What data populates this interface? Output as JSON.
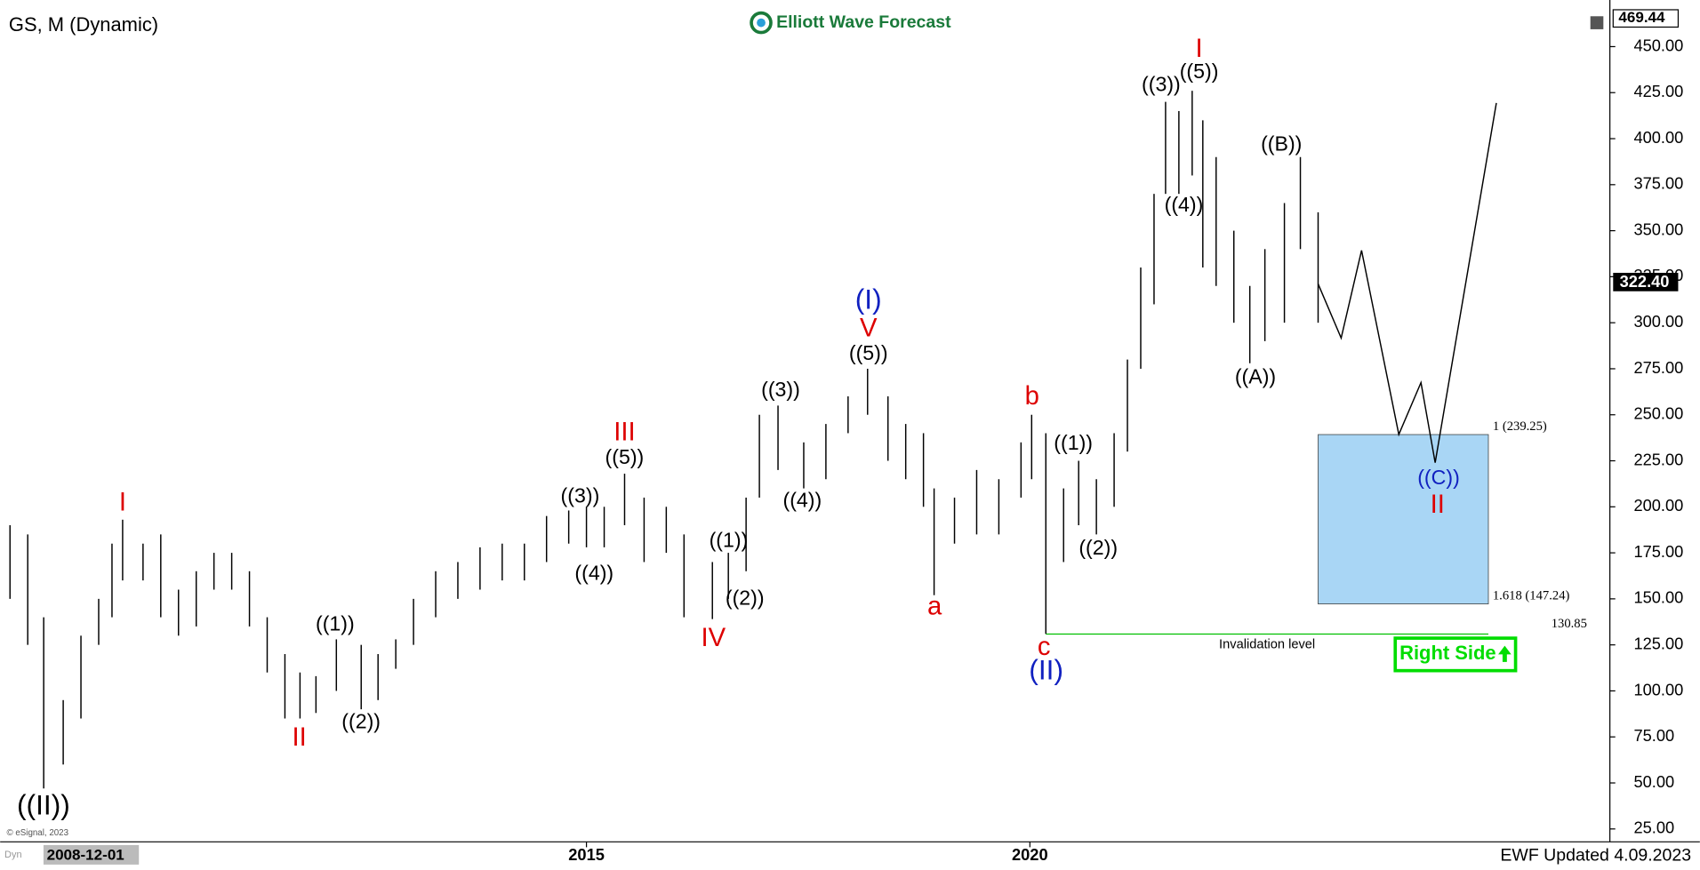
{
  "chart_data": {
    "type": "ohlc",
    "title": "GS, M (Dynamic)",
    "brand": "Elliott Wave Forecast",
    "footer": "EWF Updated 4.09.2023",
    "copyright": "© eSignal, 2023",
    "corner_tag": "Dyn",
    "cursor_date": "2008-12-01",
    "color": "#000000",
    "x": [
      2008.5,
      2008.7,
      2008.88,
      2009.1,
      2009.3,
      2009.5,
      2009.65,
      2009.77,
      2010.0,
      2010.2,
      2010.4,
      2010.6,
      2010.8,
      2011.0,
      2011.2,
      2011.4,
      2011.6,
      2011.77,
      2011.95,
      2012.18,
      2012.46,
      2012.65,
      2012.85,
      2013.05,
      2013.3,
      2013.55,
      2013.8,
      2014.05,
      2014.3,
      2014.55,
      2014.8,
      2015.0,
      2015.2,
      2015.43,
      2015.65,
      2015.9,
      2016.1,
      2016.42,
      2016.6,
      2016.8,
      2016.95,
      2017.16,
      2017.45,
      2017.7,
      2017.95,
      2018.17,
      2018.4,
      2018.6,
      2018.8,
      2018.92,
      2019.15,
      2019.4,
      2019.65,
      2019.9,
      2020.02,
      2020.18,
      2020.38,
      2020.55,
      2020.75,
      2020.95,
      2021.1,
      2021.25,
      2021.4,
      2021.53,
      2021.68,
      2021.83,
      2021.95,
      2022.1,
      2022.3,
      2022.48,
      2022.65,
      2022.87,
      2023.05,
      2023.25
    ],
    "high": [
      190,
      185,
      140,
      95,
      130,
      150,
      180,
      193,
      180,
      185,
      155,
      165,
      175,
      175,
      165,
      140,
      120,
      110,
      108,
      128,
      125,
      120,
      128,
      150,
      165,
      170,
      178,
      180,
      180,
      195,
      198,
      200,
      200,
      218,
      205,
      200,
      185,
      170,
      175,
      205,
      250,
      255,
      235,
      245,
      260,
      275,
      260,
      245,
      240,
      210,
      205,
      220,
      215,
      235,
      250,
      240,
      210,
      225,
      215,
      240,
      280,
      330,
      370,
      420,
      415,
      426,
      410,
      390,
      350,
      320,
      340,
      365,
      390,
      360
    ],
    "low": [
      150,
      125,
      47,
      60,
      85,
      125,
      140,
      160,
      160,
      140,
      130,
      135,
      155,
      155,
      135,
      110,
      85,
      85,
      88,
      100,
      90,
      95,
      112,
      125,
      140,
      150,
      155,
      160,
      160,
      170,
      180,
      178,
      178,
      190,
      170,
      175,
      140,
      139,
      150,
      165,
      205,
      220,
      210,
      215,
      240,
      250,
      225,
      215,
      200,
      152,
      180,
      185,
      185,
      205,
      215,
      131,
      170,
      190,
      185,
      200,
      230,
      275,
      310,
      370,
      370,
      380,
      330,
      320,
      300,
      278,
      290,
      300,
      340,
      300
    ],
    "projection": {
      "x": [
        2023.25,
        2023.51,
        2023.74,
        2024.16,
        2024.41,
        2024.57,
        2025.26
      ],
      "values": [
        321.1,
        291.7,
        339.3,
        239.3,
        267.5,
        224.0,
        419.4
      ],
      "color": "#000000"
    },
    "target_zone": {
      "x": [
        2023.25,
        2025.17
      ],
      "upper": 239.25,
      "upper_label": "1 (239.25)",
      "lower": 147.24,
      "lower_label": "1.618 (147.24)",
      "color": "#a9d6f5"
    },
    "invalidation": {
      "value": 130.85,
      "label": "130.85",
      "text": "Invalidation level",
      "x": [
        2020.18,
        2025.17
      ],
      "color": "#00c000"
    },
    "right_side": {
      "text": "Right Side",
      "color": "#00dd00"
    },
    "last_price": {
      "value": 322.4,
      "label": "322.40"
    },
    "ymax": {
      "value": 469.44,
      "label": "469.44"
    },
    "xlim": [
      2008.45,
      2026.54
    ],
    "xticks": [
      2015,
      2020
    ],
    "ylim": [
      19,
      469.44
    ],
    "yticks": [
      {
        "value": 25,
        "label": "25.00"
      },
      {
        "value": 50,
        "label": "50.00"
      },
      {
        "value": 75,
        "label": "75.00"
      },
      {
        "value": 100,
        "label": "100.00"
      },
      {
        "value": 125,
        "label": "125.00"
      },
      {
        "value": 150,
        "label": "150.00"
      },
      {
        "value": 175,
        "label": "175.00"
      },
      {
        "value": 200,
        "label": "200.00"
      },
      {
        "value": 225,
        "label": "225.00"
      },
      {
        "value": 250,
        "label": "250.00"
      },
      {
        "value": 275,
        "label": "275.00"
      },
      {
        "value": 300,
        "label": "300.00"
      },
      {
        "value": 325,
        "label": "325.00"
      },
      {
        "value": 350,
        "label": "350.00"
      },
      {
        "value": 375,
        "label": "375.00"
      },
      {
        "value": 400,
        "label": "400.00"
      },
      {
        "value": 425,
        "label": "425.00"
      },
      {
        "value": 450,
        "label": "450.00"
      }
    ],
    "wave_labels": [
      {
        "text": "((II))",
        "color": "#000000"
      },
      {
        "text": "I",
        "color": "#dd0000"
      },
      {
        "text": "II",
        "color": "#dd0000"
      },
      {
        "text": "((1))",
        "color": "#000000"
      },
      {
        "text": "((2))",
        "color": "#000000"
      },
      {
        "text": "((3))",
        "color": "#000000"
      },
      {
        "text": "((4))",
        "color": "#000000"
      },
      {
        "text": "((5))",
        "color": "#000000"
      },
      {
        "text": "III",
        "color": "#dd0000"
      },
      {
        "text": "((1))",
        "color": "#000000"
      },
      {
        "text": "((2))",
        "color": "#000000"
      },
      {
        "text": "IV",
        "color": "#dd0000"
      },
      {
        "text": "((3))",
        "color": "#000000"
      },
      {
        "text": "((4))",
        "color": "#000000"
      },
      {
        "text": "((5))",
        "color": "#000000"
      },
      {
        "text": "V",
        "color": "#dd0000"
      },
      {
        "text": "(I)",
        "color": "#1020c0"
      },
      {
        "text": "a",
        "color": "#dd0000"
      },
      {
        "text": "b",
        "color": "#dd0000"
      },
      {
        "text": "c",
        "color": "#dd0000"
      },
      {
        "text": "(II)",
        "color": "#1020c0"
      },
      {
        "text": "((1))",
        "color": "#000000"
      },
      {
        "text": "((2))",
        "color": "#000000"
      },
      {
        "text": "((3))",
        "color": "#000000"
      },
      {
        "text": "((5))",
        "color": "#000000"
      },
      {
        "text": "I",
        "color": "#dd0000"
      },
      {
        "text": "((4))",
        "color": "#000000"
      },
      {
        "text": "((A))",
        "color": "#000000"
      },
      {
        "text": "((B))",
        "color": "#000000"
      },
      {
        "text": "((C))",
        "color": "#1020c0"
      },
      {
        "text": "II",
        "color": "#dd0000"
      }
    ]
  }
}
